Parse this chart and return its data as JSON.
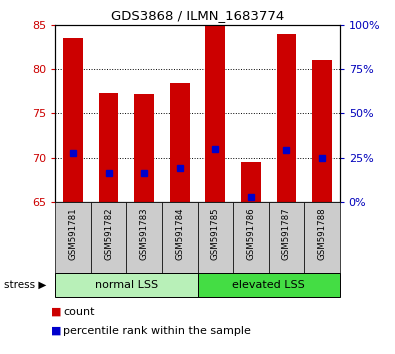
{
  "title": "GDS3868 / ILMN_1683774",
  "samples": [
    "GSM591781",
    "GSM591782",
    "GSM591783",
    "GSM591784",
    "GSM591785",
    "GSM591786",
    "GSM591787",
    "GSM591788"
  ],
  "count_values": [
    83.5,
    77.3,
    77.2,
    78.4,
    85.0,
    69.5,
    84.0,
    81.0
  ],
  "percentile_values": [
    70.5,
    68.3,
    68.3,
    68.8,
    71.0,
    65.5,
    70.8,
    70.0
  ],
  "ylim_left": [
    65,
    85
  ],
  "ylim_right": [
    0,
    100
  ],
  "yticks_left": [
    65,
    70,
    75,
    80,
    85
  ],
  "yticks_right": [
    0,
    25,
    50,
    75,
    100
  ],
  "ytick_labels_right": [
    "0%",
    "25%",
    "50%",
    "75%",
    "100%"
  ],
  "groups": [
    {
      "label": "normal LSS",
      "start": 0,
      "end": 3,
      "color": "#b8f0b8"
    },
    {
      "label": "elevated LSS",
      "start": 4,
      "end": 7,
      "color": "#44dd44"
    }
  ],
  "bar_color": "#cc0000",
  "dot_color": "#0000cc",
  "bar_bottom": 65,
  "bar_width": 0.55,
  "bg_xtick": "#cccccc",
  "left_tick_color": "#cc0000",
  "right_tick_color": "#0000bb",
  "stress_label": "stress",
  "legend_count": "count",
  "legend_pct": "percentile rank within the sample"
}
